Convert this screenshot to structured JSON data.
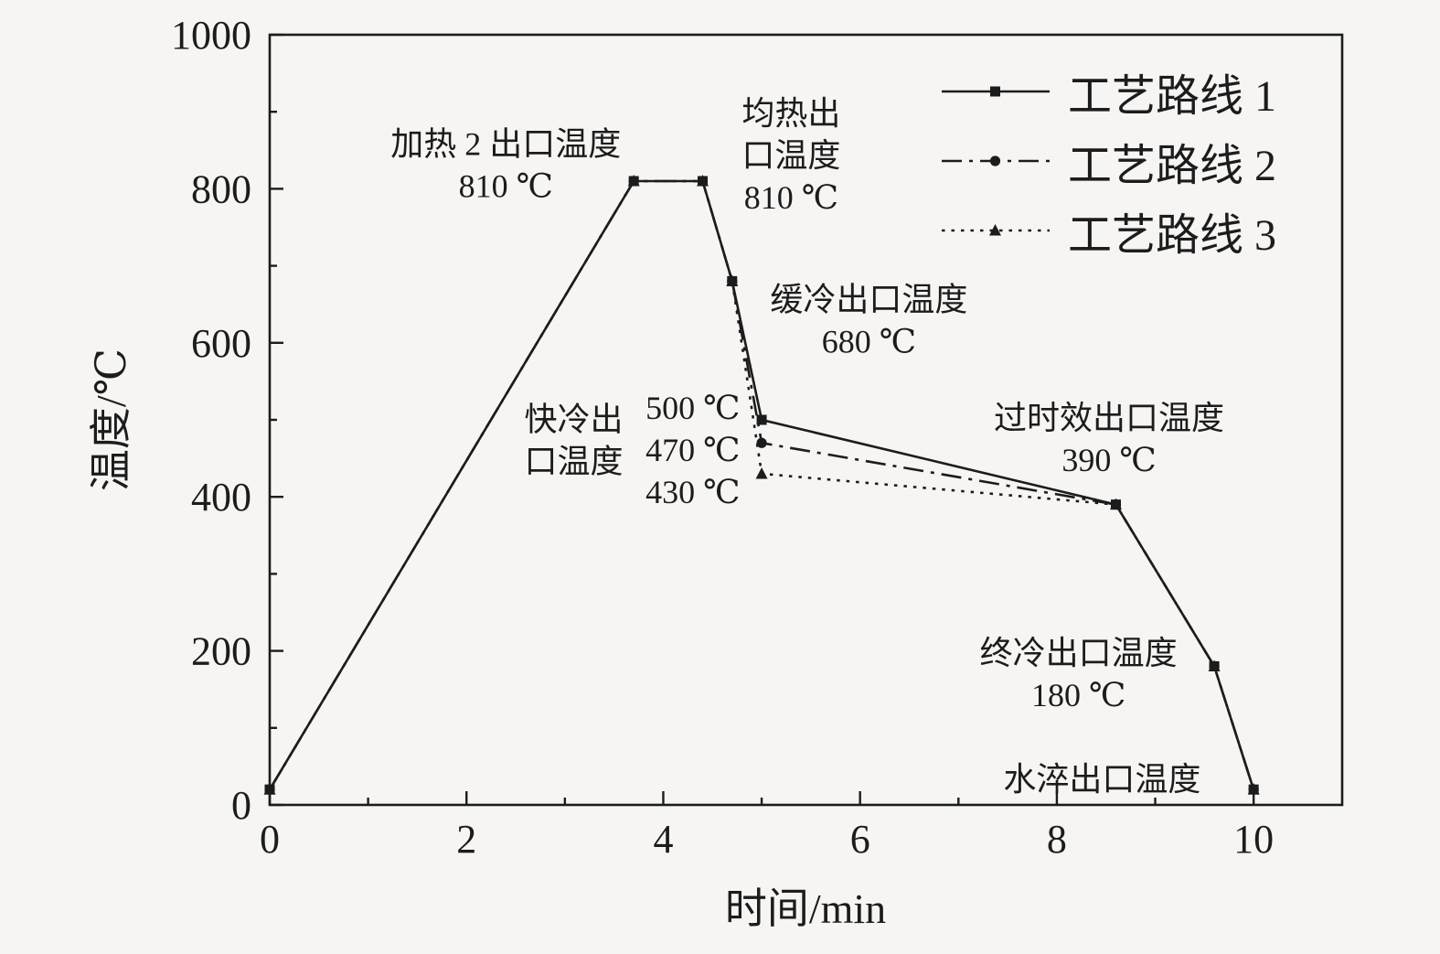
{
  "colors": {
    "foreground": "#1c1c1c",
    "background": "#f6f5f3"
  },
  "chart_data": {
    "type": "line",
    "title": "",
    "xlabel": "时间/min",
    "ylabel": "温度/℃",
    "xlim": [
      0,
      10.9
    ],
    "ylim": [
      0,
      1000
    ],
    "xticks": [
      0,
      2,
      4,
      6,
      8,
      10
    ],
    "yticks": [
      0,
      200,
      400,
      600,
      800,
      1000
    ],
    "x_minor_ticks": [
      1,
      3,
      5,
      7,
      9
    ],
    "y_minor_ticks": [
      100,
      300,
      500,
      700,
      900
    ],
    "grid": "off",
    "legend_position": "top-right",
    "series": [
      {
        "name": "工艺路线 1",
        "line_style": "solid",
        "marker": "square",
        "points": [
          [
            0,
            20
          ],
          [
            3.7,
            810
          ],
          [
            4.4,
            810
          ],
          [
            4.7,
            680
          ],
          [
            5.0,
            500
          ],
          [
            8.6,
            390
          ],
          [
            9.6,
            180
          ],
          [
            10,
            20
          ]
        ]
      },
      {
        "name": "工艺路线 2",
        "line_style": "dash-dot",
        "marker": "circle",
        "points": [
          [
            0,
            20
          ],
          [
            3.7,
            810
          ],
          [
            4.4,
            810
          ],
          [
            4.7,
            680
          ],
          [
            5.0,
            470
          ],
          [
            8.6,
            390
          ],
          [
            9.6,
            180
          ],
          [
            10,
            20
          ]
        ]
      },
      {
        "name": "工艺路线 3",
        "line_style": "dotted",
        "marker": "triangle",
        "points": [
          [
            0,
            20
          ],
          [
            3.7,
            810
          ],
          [
            4.4,
            810
          ],
          [
            4.7,
            680
          ],
          [
            5.0,
            430
          ],
          [
            8.6,
            390
          ],
          [
            9.6,
            180
          ],
          [
            10,
            20
          ]
        ]
      }
    ],
    "annotations": [
      {
        "id": "heating2-exit",
        "lines": [
          "加热 2 出口温度",
          "810 ℃"
        ],
        "x": 2.4,
        "y": 831
      },
      {
        "id": "soaking-exit",
        "lines": [
          "均热出",
          "口温度",
          "810 ℃"
        ],
        "x": 5.3,
        "y": 843
      },
      {
        "id": "slow-cool-exit",
        "lines": [
          "缓冷出口温度",
          "680 ℃"
        ],
        "x": 6.09,
        "y": 629
      },
      {
        "id": "fast-cool-exit",
        "lines": [
          "快冷出",
          "口温度"
        ],
        "x": 3.09,
        "y": 473
      },
      {
        "id": "fast-cool-temps",
        "lines": [
          "500 ℃",
          "470 ℃",
          "430 ℃"
        ],
        "x": 4.3,
        "y": 461
      },
      {
        "id": "overaging-exit",
        "lines": [
          "过时效出口温度",
          "390 ℃"
        ],
        "x": 8.53,
        "y": 475
      },
      {
        "id": "final-cool-exit",
        "lines": [
          "终冷出口温度",
          "180 ℃"
        ],
        "x": 8.22,
        "y": 170
      },
      {
        "id": "water-quench-exit",
        "lines": [
          "水淬出口温度"
        ],
        "x": 8.46,
        "y": 33
      }
    ]
  }
}
